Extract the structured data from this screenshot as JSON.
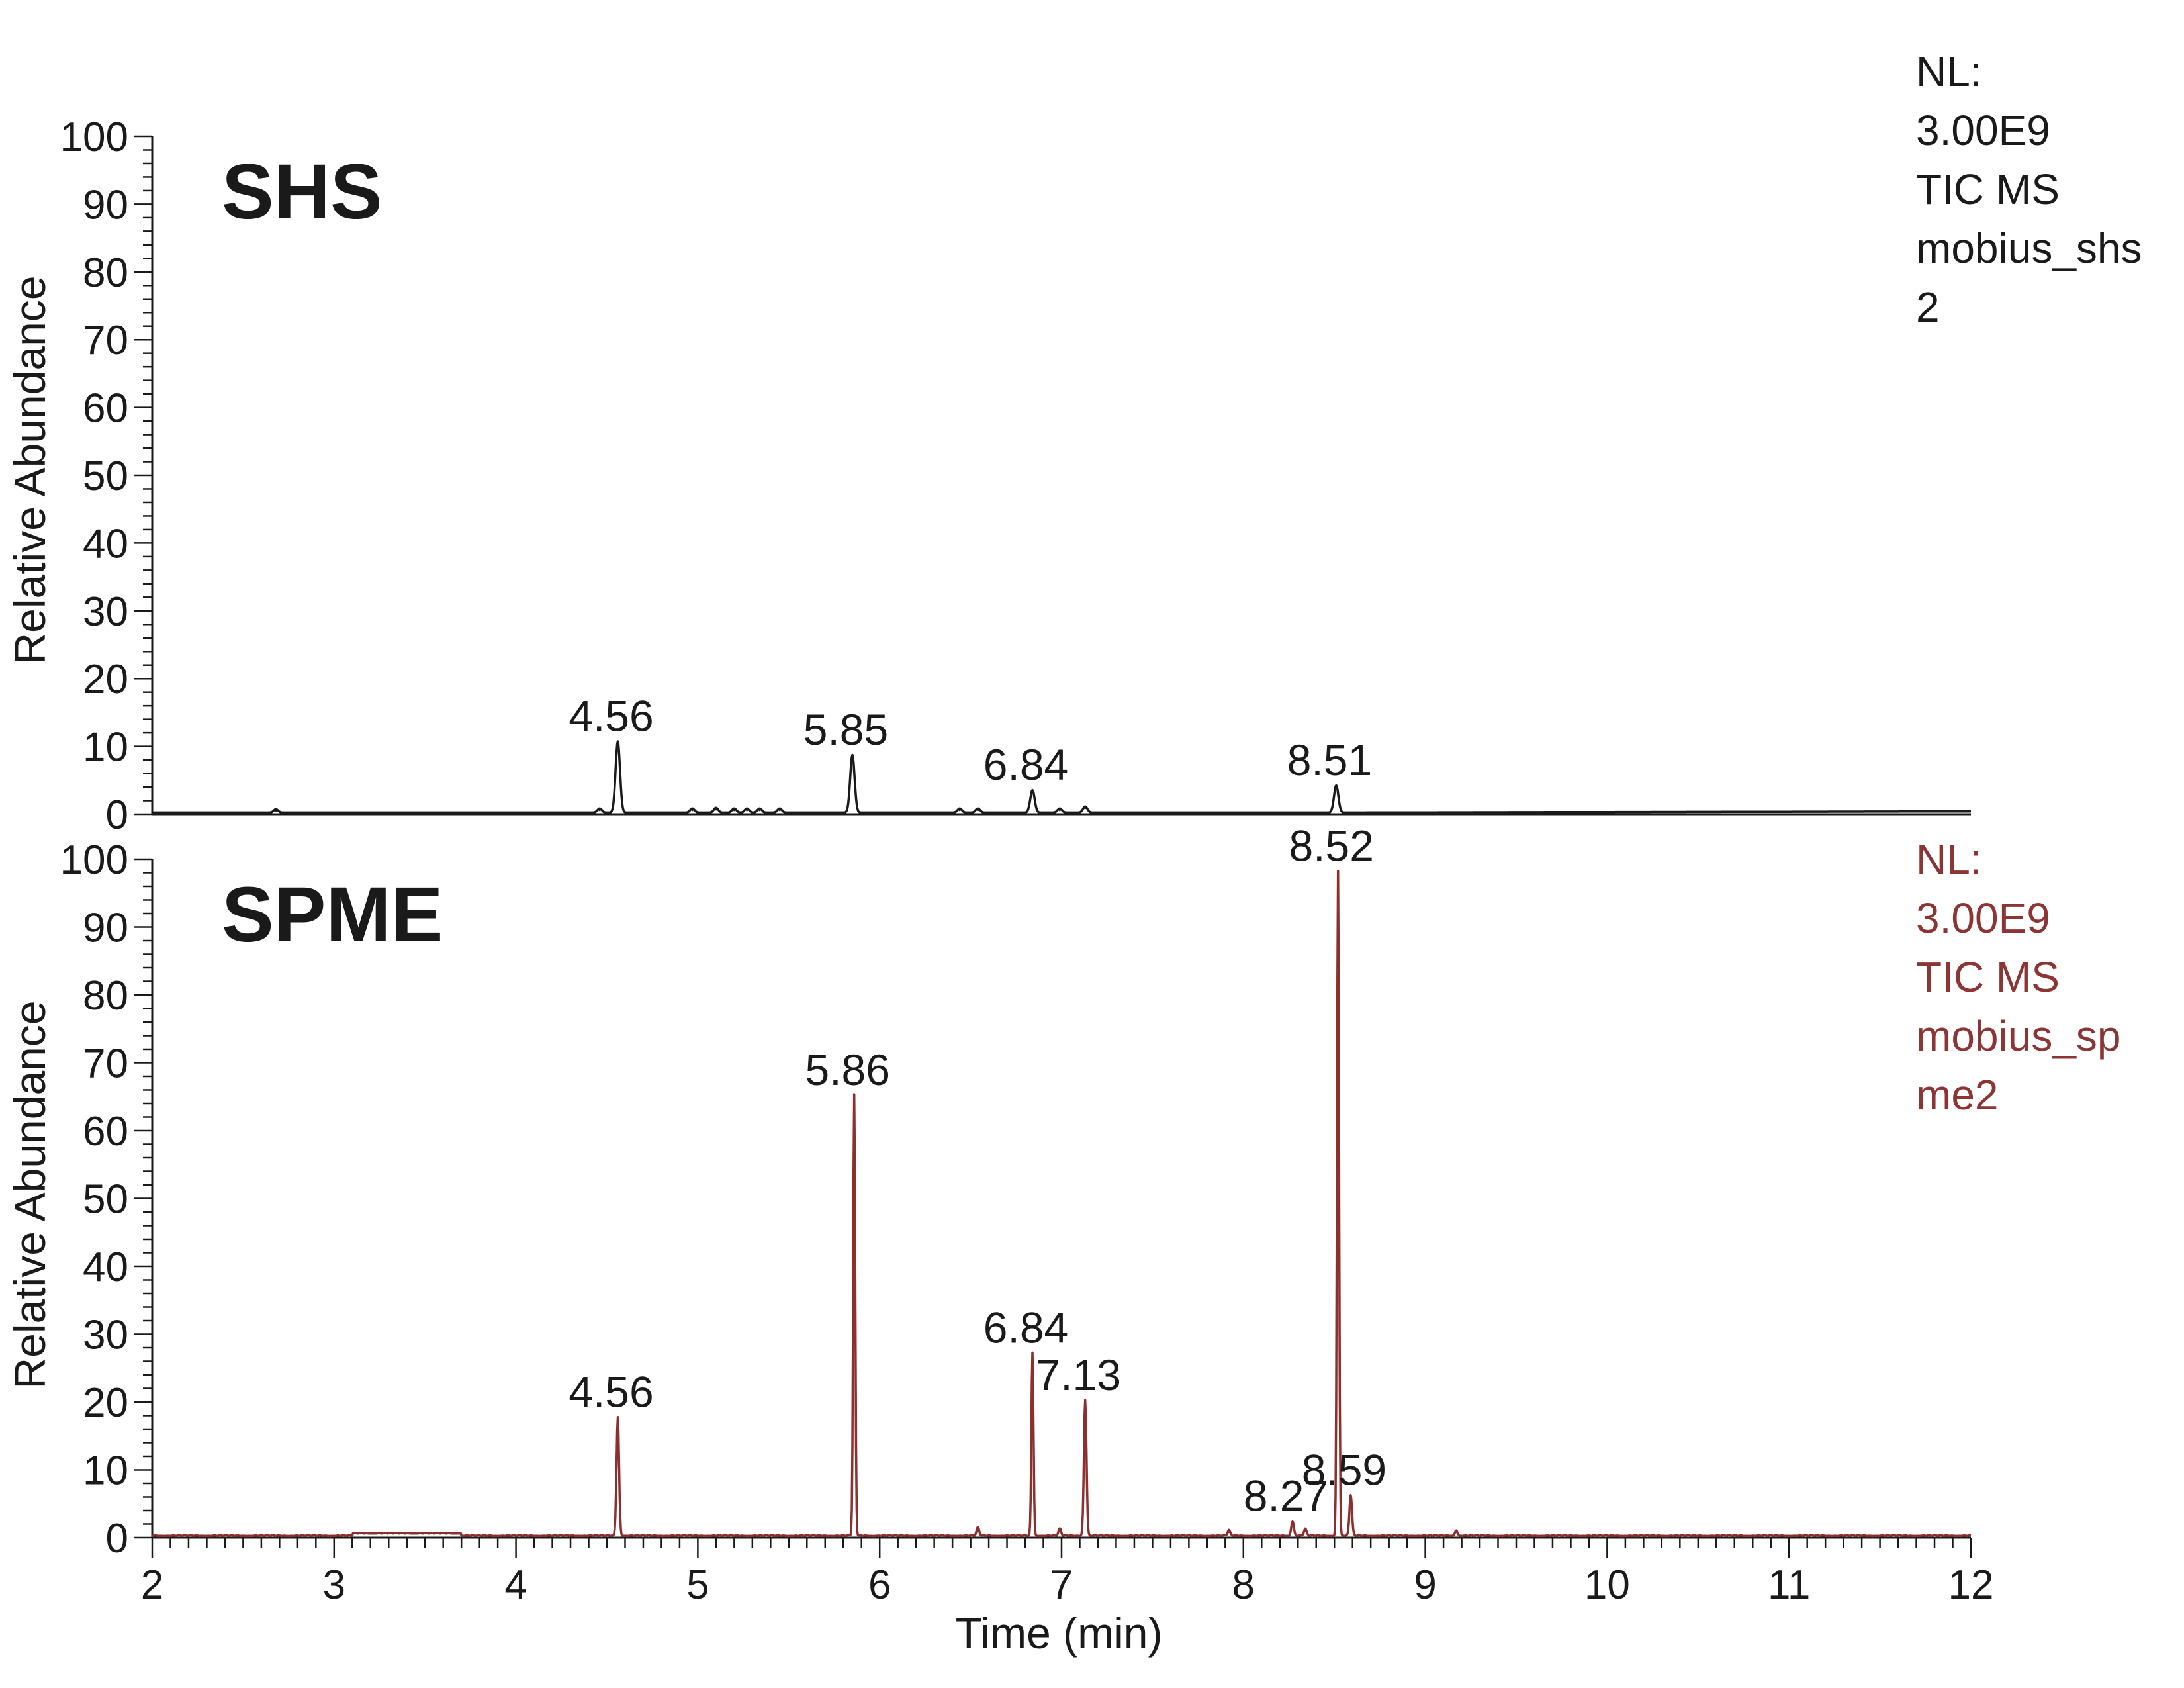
{
  "chart_data": [
    {
      "type": "line",
      "panel_label": "SHS",
      "ylabel": "Relative Abundance",
      "xlim": [
        2,
        12
      ],
      "ylim": [
        0,
        100
      ],
      "yticks": [
        0,
        10,
        20,
        30,
        40,
        50,
        60,
        70,
        80,
        90,
        100
      ],
      "line_color": "#1a1a1a",
      "info_color": "#1a1a1a",
      "info_lines": [
        "NL:",
        "3.00E9",
        "TIC MS",
        "mobius_shs",
        "2"
      ],
      "peaks": [
        {
          "x": 2.68,
          "y": 0.5
        },
        {
          "x": 4.46,
          "y": 0.6
        },
        {
          "x": 4.56,
          "y": 10.5,
          "label": "4.56"
        },
        {
          "x": 4.97,
          "y": 0.6
        },
        {
          "x": 5.1,
          "y": 0.7
        },
        {
          "x": 5.2,
          "y": 0.6
        },
        {
          "x": 5.27,
          "y": 0.6
        },
        {
          "x": 5.34,
          "y": 0.6
        },
        {
          "x": 5.45,
          "y": 0.6
        },
        {
          "x": 5.85,
          "y": 8.5,
          "label": "5.85"
        },
        {
          "x": 6.44,
          "y": 0.6
        },
        {
          "x": 6.54,
          "y": 0.6
        },
        {
          "x": 6.84,
          "y": 3.3,
          "label": "6.84"
        },
        {
          "x": 6.99,
          "y": 0.6
        },
        {
          "x": 7.13,
          "y": 0.9
        },
        {
          "x": 8.51,
          "y": 4.0,
          "label": "8.51"
        }
      ]
    },
    {
      "type": "line",
      "panel_label": "SPME",
      "ylabel": "Relative Abundance",
      "xlabel": "Time (min)",
      "xlim": [
        2,
        12
      ],
      "ylim": [
        0,
        100
      ],
      "xticks": [
        2,
        3,
        4,
        5,
        6,
        7,
        8,
        9,
        10,
        11,
        12
      ],
      "yticks": [
        0,
        10,
        20,
        30,
        40,
        50,
        60,
        70,
        80,
        90,
        100
      ],
      "line_color": "#8b2f2f",
      "info_color": "#8b3535",
      "info_lines": [
        "NL:",
        "3.00E9",
        "TIC MS",
        "mobius_sp",
        "me2"
      ],
      "peaks": [
        {
          "x": 4.56,
          "y": 17.5,
          "label": "4.56"
        },
        {
          "x": 5.86,
          "y": 65.0,
          "label": "5.86"
        },
        {
          "x": 6.54,
          "y": 1.2
        },
        {
          "x": 6.84,
          "y": 27.0,
          "label": "6.84"
        },
        {
          "x": 6.99,
          "y": 1.0
        },
        {
          "x": 7.13,
          "y": 20.0,
          "label": "7.13"
        },
        {
          "x": 7.92,
          "y": 0.8
        },
        {
          "x": 8.27,
          "y": 2.2,
          "label": "8.27"
        },
        {
          "x": 8.34,
          "y": 1.0
        },
        {
          "x": 8.52,
          "y": 98.0,
          "label": "8.52"
        },
        {
          "x": 8.59,
          "y": 6.0,
          "label": "8.59"
        },
        {
          "x": 9.17,
          "y": 0.8
        }
      ]
    }
  ]
}
